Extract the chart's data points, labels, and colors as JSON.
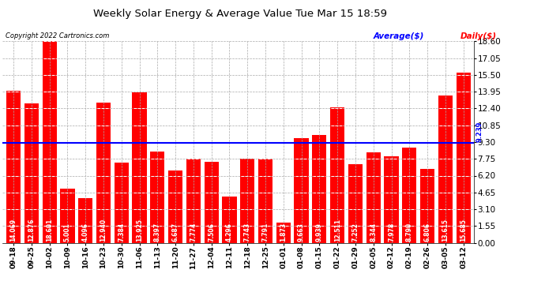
{
  "title": "Weekly Solar Energy & Average Value Tue Mar 15 18:59",
  "copyright": "Copyright 2022 Cartronics.com",
  "legend_avg": "Average($)",
  "legend_daily": "Daily($)",
  "categories": [
    "09-18",
    "09-25",
    "10-02",
    "10-09",
    "10-16",
    "10-23",
    "10-30",
    "11-06",
    "11-13",
    "11-20",
    "11-27",
    "12-04",
    "12-11",
    "12-18",
    "12-25",
    "01-01",
    "01-08",
    "01-15",
    "01-22",
    "01-29",
    "02-05",
    "02-12",
    "02-19",
    "02-26",
    "03-05",
    "03-12"
  ],
  "values": [
    14.069,
    12.876,
    18.601,
    5.001,
    4.096,
    12.94,
    7.384,
    13.925,
    8.397,
    6.687,
    7.774,
    7.506,
    4.296,
    7.743,
    7.791,
    1.873,
    9.663,
    9.939,
    12.511,
    7.252,
    8.344,
    7.978,
    8.79,
    6.806,
    13.615,
    15.685
  ],
  "average": 9.239,
  "bar_color": "#ff0000",
  "avg_line_color": "#0000ff",
  "avg_text_color": "#0000ff",
  "avg_label_color": "#0000ff",
  "daily_label_color": "#ff0000",
  "title_color": "#000000",
  "copyright_color": "#000000",
  "background_color": "#ffffff",
  "plot_bg_color": "#ffffff",
  "grid_color": "#aaaaaa",
  "yticks": [
    0.0,
    1.55,
    3.1,
    4.65,
    6.2,
    7.75,
    9.3,
    10.85,
    12.4,
    13.95,
    15.5,
    17.05,
    18.6
  ],
  "ylim": [
    0,
    18.6
  ],
  "bar_width": 0.8,
  "value_fontsize": 5.5,
  "xtick_fontsize": 6.5,
  "ytick_fontsize": 7.5,
  "title_fontsize": 9.5
}
